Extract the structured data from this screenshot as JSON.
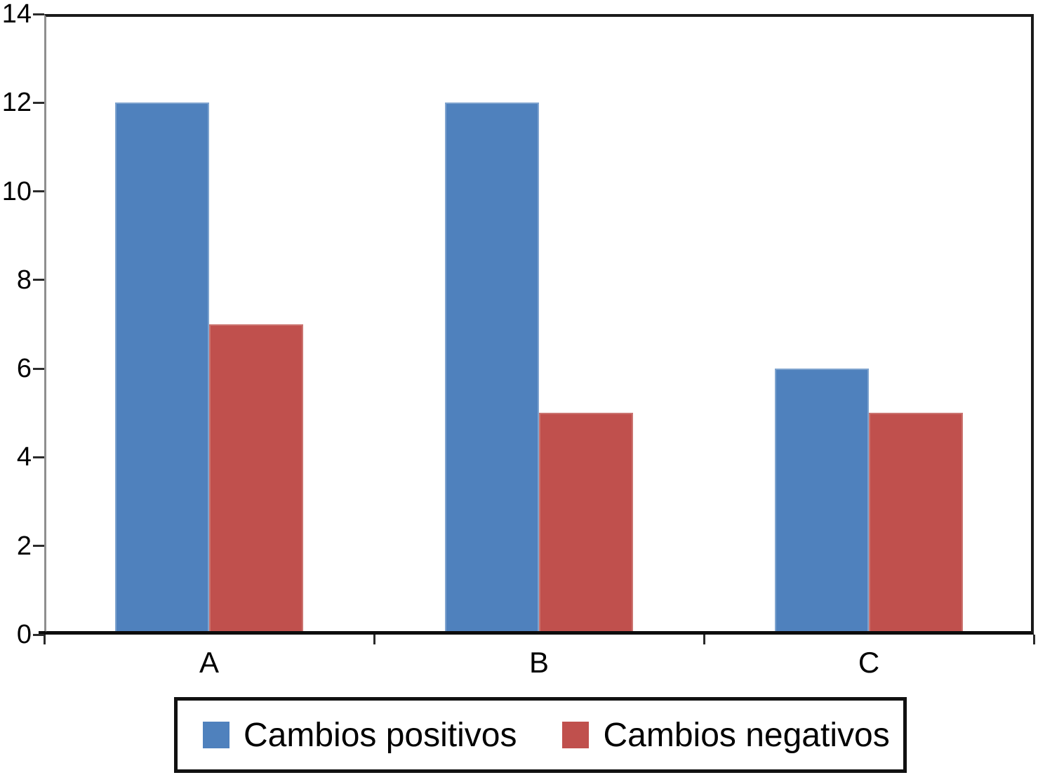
{
  "chart_data": {
    "type": "bar",
    "categories": [
      "A",
      "B",
      "C"
    ],
    "series": [
      {
        "name": "Cambios positivos",
        "color": "#4F81BD",
        "edge_color": "#7FA4CF",
        "values": [
          12,
          12,
          6
        ]
      },
      {
        "name": "Cambios negativos",
        "color": "#C0504D",
        "edge_color": "#CB7470",
        "values": [
          7,
          5,
          5
        ]
      }
    ],
    "title": "",
    "xlabel": "",
    "ylabel": "",
    "ylim": [
      0,
      14
    ],
    "ytick_step": 2,
    "ytick_labels": [
      "0",
      "2",
      "4",
      "6",
      "8",
      "10",
      "12",
      "14"
    ],
    "grid": false,
    "legend_position": "bottom",
    "bar_layout": "grouped"
  },
  "colors": {
    "frame_line": "#1a1a1a",
    "left_axis_line": "#8f8f8f",
    "tick": "#2b2b2b",
    "text": "#000000",
    "background": "#ffffff"
  }
}
